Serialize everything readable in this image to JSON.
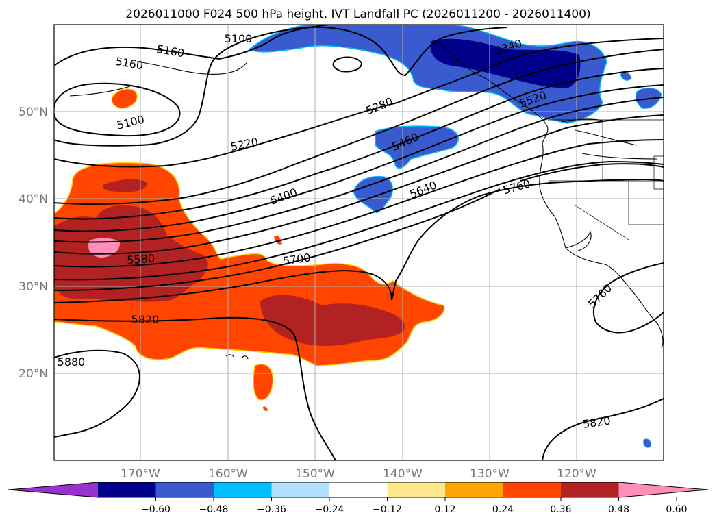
{
  "title": "2026011000 F024 500 hPa height, IVT Landfall PC (2026011200 - 2026011400)",
  "lat_labels": [
    "50°N",
    "40°N",
    "30°N",
    "20°N"
  ],
  "lon_labels": [
    "170°W",
    "160°W",
    "150°W",
    "140°W",
    "130°W",
    "120°W"
  ],
  "colorbar": {
    "tick_labels": [
      "−0.60",
      "−0.48",
      "−0.36",
      "−0.24",
      "−0.12",
      "0.12",
      "0.24",
      "0.36",
      "0.48",
      "0.60"
    ],
    "colors": [
      "#9932cc",
      "#00008b",
      "#3a5ad0",
      "#00bfff",
      "#b0e2ff",
      "#ffffff",
      "#ffe88c",
      "#ffa500",
      "#ff4500",
      "#b22222",
      "#ff8fb8"
    ]
  },
  "contour_labels": [
    {
      "text": "5100"
    },
    {
      "text": "5160"
    },
    {
      "text": "5160"
    },
    {
      "text": "5100"
    },
    {
      "text": "5220"
    },
    {
      "text": "5280"
    },
    {
      "text": "5340"
    },
    {
      "text": "5520"
    },
    {
      "text": "5460"
    },
    {
      "text": "5400"
    },
    {
      "text": "5640"
    },
    {
      "text": "5760"
    },
    {
      "text": "5580"
    },
    {
      "text": "5700"
    },
    {
      "text": "5820"
    },
    {
      "text": "5880"
    },
    {
      "text": "5760"
    },
    {
      "text": "5820"
    }
  ]
}
